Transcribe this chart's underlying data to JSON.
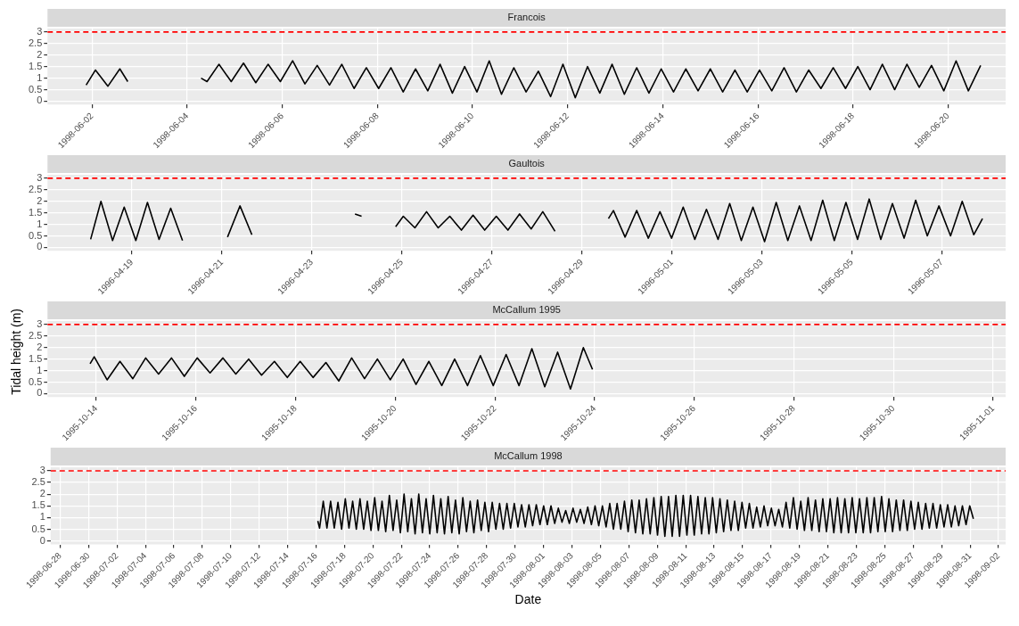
{
  "chart_data": [
    {
      "type": "line",
      "title": "Francois",
      "xlim": [
        "1998-06-01T01:30",
        "1998-06-21T05:00"
      ],
      "xticks": [
        "1998-06-02",
        "1998-06-04",
        "1998-06-06",
        "1998-06-08",
        "1998-06-10",
        "1998-06-12",
        "1998-06-14",
        "1998-06-16",
        "1998-06-18",
        "1998-06-20"
      ],
      "ylim": [
        -0.15,
        3.15
      ],
      "yticks": [
        0,
        0.5,
        1,
        1.5,
        2,
        2.5,
        3
      ],
      "grid": true,
      "ref_lines": [
        {
          "axis": "y",
          "value": 3,
          "color": "#ff0000",
          "line_style": "dashed"
        }
      ],
      "series": [
        {
          "color": "#000000",
          "x": [
            "1998-06-01T21:00",
            "1998-06-02T01:40",
            "1998-06-02T08:00",
            "1998-06-02T14:00",
            "1998-06-02T18:00",
            "1998-06-03T12:00",
            "1998-06-04T07:00",
            "1998-06-04T10:00",
            "1998-06-04T16:00",
            "1998-06-04T22:12",
            "1998-06-05T04:24",
            "1998-06-05T10:36",
            "1998-06-05T16:48",
            "1998-06-05T23:00",
            "1998-06-06T05:12",
            "1998-06-06T11:24",
            "1998-06-06T17:36",
            "1998-06-06T23:48",
            "1998-06-07T06:00",
            "1998-06-07T12:12",
            "1998-06-07T18:24",
            "1998-06-08T00:36",
            "1998-06-08T06:48",
            "1998-06-08T13:00",
            "1998-06-08T19:12",
            "1998-06-09T01:24",
            "1998-06-09T07:36",
            "1998-06-09T13:48",
            "1998-06-09T20:00",
            "1998-06-10T02:12",
            "1998-06-10T08:24",
            "1998-06-10T14:36",
            "1998-06-10T20:48",
            "1998-06-11T03:00",
            "1998-06-11T09:12",
            "1998-06-11T15:24",
            "1998-06-11T21:36",
            "1998-06-12T03:48",
            "1998-06-12T10:00",
            "1998-06-12T16:12",
            "1998-06-12T22:24",
            "1998-06-13T04:36",
            "1998-06-13T10:48",
            "1998-06-13T17:00",
            "1998-06-13T23:12",
            "1998-06-14T05:24",
            "1998-06-14T11:36",
            "1998-06-14T17:48",
            "1998-06-15T00:00",
            "1998-06-15T06:12",
            "1998-06-15T12:24",
            "1998-06-15T18:36",
            "1998-06-16T00:48",
            "1998-06-16T07:00",
            "1998-06-16T13:12",
            "1998-06-16T19:24",
            "1998-06-17T01:36",
            "1998-06-17T07:48",
            "1998-06-17T14:00",
            "1998-06-17T20:12",
            "1998-06-18T02:24",
            "1998-06-18T08:36",
            "1998-06-18T14:48",
            "1998-06-18T21:00",
            "1998-06-19T03:12",
            "1998-06-19T09:24",
            "1998-06-19T15:36",
            "1998-06-19T21:48",
            "1998-06-20T04:00",
            "1998-06-20T10:12",
            "1998-06-20T16:24"
          ],
          "values": [
            0.7,
            1.35,
            0.65,
            1.4,
            0.85,
            null,
            1.0,
            0.85,
            1.6,
            0.85,
            1.65,
            0.8,
            1.6,
            0.85,
            1.75,
            0.75,
            1.55,
            0.7,
            1.6,
            0.55,
            1.45,
            0.55,
            1.45,
            0.4,
            1.4,
            0.45,
            1.6,
            0.35,
            1.5,
            0.4,
            1.75,
            0.3,
            1.45,
            0.4,
            1.3,
            0.2,
            1.6,
            0.15,
            1.5,
            0.35,
            1.6,
            0.3,
            1.45,
            0.35,
            1.4,
            0.4,
            1.4,
            0.45,
            1.4,
            0.4,
            1.35,
            0.4,
            1.35,
            0.45,
            1.45,
            0.4,
            1.35,
            0.55,
            1.45,
            0.55,
            1.5,
            0.5,
            1.6,
            0.5,
            1.6,
            0.6,
            1.55,
            0.45,
            1.75,
            0.45,
            1.55
          ]
        }
      ]
    },
    {
      "type": "line",
      "title": "Gaultois",
      "xlim": [
        "1996-04-17T03:00",
        "1996-05-08T10:00"
      ],
      "xticks": [
        "1996-04-19",
        "1996-04-21",
        "1996-04-23",
        "1996-04-25",
        "1996-04-27",
        "1996-04-29",
        "1996-05-01",
        "1996-05-03",
        "1996-05-05",
        "1996-05-07"
      ],
      "ylim": [
        -0.15,
        3.15
      ],
      "yticks": [
        0,
        0.5,
        1,
        1.5,
        2,
        2.5,
        3
      ],
      "grid": true,
      "ref_lines": [
        {
          "axis": "y",
          "value": 3,
          "color": "#ff0000",
          "line_style": "dashed"
        }
      ],
      "series": [
        {
          "color": "#000000",
          "x": [
            "1996-04-18T02:00",
            "1996-04-18T07:30",
            "1996-04-18T13:42",
            "1996-04-18T19:54",
            "1996-04-19T02:06",
            "1996-04-19T08:18",
            "1996-04-19T14:30",
            "1996-04-19T20:42",
            "1996-04-20T03:00",
            "1996-04-20T15:00",
            "1996-04-21T03:00",
            "1996-04-21T09:40",
            "1996-04-21T16:00",
            "1996-04-22T20:00",
            "1996-04-23T23:00",
            "1996-04-24T02:30",
            "1996-04-24T12:00",
            "1996-04-24T20:40",
            "1996-04-25T00:45",
            "1996-04-25T06:57",
            "1996-04-25T13:09",
            "1996-04-25T19:21",
            "1996-04-26T01:33",
            "1996-04-26T07:45",
            "1996-04-26T13:57",
            "1996-04-26T20:09",
            "1996-04-27T02:21",
            "1996-04-27T08:33",
            "1996-04-27T14:45",
            "1996-04-27T20:57",
            "1996-04-28T03:09",
            "1996-04-28T09:40",
            "1996-04-29T00:00",
            "1996-04-29T14:10",
            "1996-04-29T16:50",
            "1996-04-29T23:02",
            "1996-04-30T05:14",
            "1996-04-30T11:26",
            "1996-04-30T17:38",
            "1996-04-30T23:50",
            "1996-05-01T06:02",
            "1996-05-01T12:14",
            "1996-05-01T18:26",
            "1996-05-02T00:38",
            "1996-05-02T06:50",
            "1996-05-02T13:02",
            "1996-05-02T19:14",
            "1996-05-03T01:26",
            "1996-05-03T07:38",
            "1996-05-03T13:50",
            "1996-05-03T20:02",
            "1996-05-04T02:14",
            "1996-05-04T08:26",
            "1996-05-04T14:38",
            "1996-05-04T20:50",
            "1996-05-05T03:02",
            "1996-05-05T09:14",
            "1996-05-05T15:26",
            "1996-05-05T21:38",
            "1996-05-06T03:50",
            "1996-05-06T10:02",
            "1996-05-06T16:14",
            "1996-05-06T22:26",
            "1996-05-07T04:38",
            "1996-05-07T10:50",
            "1996-05-07T17:02",
            "1996-05-07T21:40"
          ],
          "values": [
            0.35,
            2.0,
            0.3,
            1.75,
            0.3,
            1.95,
            0.35,
            1.7,
            0.3,
            null,
            0.45,
            1.8,
            0.55,
            null,
            1.45,
            1.35,
            null,
            0.9,
            1.35,
            0.85,
            1.55,
            0.85,
            1.35,
            0.75,
            1.4,
            0.75,
            1.35,
            0.75,
            1.45,
            0.8,
            1.55,
            0.7,
            null,
            1.25,
            1.6,
            0.45,
            1.6,
            0.4,
            1.55,
            0.4,
            1.75,
            0.35,
            1.65,
            0.35,
            1.9,
            0.3,
            1.75,
            0.25,
            1.95,
            0.3,
            1.8,
            0.3,
            2.05,
            0.3,
            1.95,
            0.35,
            2.1,
            0.35,
            1.9,
            0.4,
            2.05,
            0.5,
            1.8,
            0.5,
            2.0,
            0.55,
            1.25
          ]
        }
      ]
    },
    {
      "type": "line",
      "title": "McCallum 1995",
      "ylabel": "Tidal height (m)",
      "xlim": [
        "1995-10-13T00:30",
        "1995-11-01T06:00"
      ],
      "xticks": [
        "1995-10-14",
        "1995-10-16",
        "1995-10-18",
        "1995-10-20",
        "1995-10-22",
        "1995-10-24",
        "1995-10-26",
        "1995-10-28",
        "1995-10-30",
        "1995-11-01"
      ],
      "ylim": [
        -0.15,
        3.15
      ],
      "yticks": [
        0,
        0.5,
        1,
        1.5,
        2,
        2.5,
        3
      ],
      "grid": true,
      "ref_lines": [
        {
          "axis": "y",
          "value": 3,
          "color": "#ff0000",
          "line_style": "dashed"
        }
      ],
      "series": [
        {
          "color": "#000000",
          "x": [
            "1995-10-13T21:00",
            "1995-10-13T23:00",
            "1995-10-14T05:12",
            "1995-10-14T11:24",
            "1995-10-14T17:36",
            "1995-10-14T23:48",
            "1995-10-15T06:00",
            "1995-10-15T12:12",
            "1995-10-15T18:24",
            "1995-10-16T00:36",
            "1995-10-16T06:48",
            "1995-10-16T13:00",
            "1995-10-16T19:12",
            "1995-10-17T01:24",
            "1995-10-17T07:36",
            "1995-10-17T13:48",
            "1995-10-17T20:00",
            "1995-10-18T02:12",
            "1995-10-18T08:24",
            "1995-10-18T14:36",
            "1995-10-18T20:48",
            "1995-10-19T03:00",
            "1995-10-19T09:12",
            "1995-10-19T15:24",
            "1995-10-19T21:36",
            "1995-10-20T03:48",
            "1995-10-20T10:00",
            "1995-10-20T16:12",
            "1995-10-20T22:24",
            "1995-10-21T04:36",
            "1995-10-21T10:48",
            "1995-10-21T17:00",
            "1995-10-21T23:12",
            "1995-10-22T05:24",
            "1995-10-22T11:36",
            "1995-10-22T17:48",
            "1995-10-23T00:00",
            "1995-10-23T06:12",
            "1995-10-23T12:24",
            "1995-10-23T18:36",
            "1995-10-23T23:00"
          ],
          "values": [
            1.3,
            1.6,
            0.6,
            1.4,
            0.65,
            1.55,
            0.85,
            1.55,
            0.75,
            1.55,
            0.9,
            1.55,
            0.85,
            1.5,
            0.8,
            1.4,
            0.7,
            1.4,
            0.7,
            1.35,
            0.55,
            1.55,
            0.65,
            1.5,
            0.6,
            1.5,
            0.4,
            1.4,
            0.35,
            1.5,
            0.35,
            1.65,
            0.35,
            1.7,
            0.35,
            1.95,
            0.3,
            1.8,
            0.2,
            2.0,
            1.05
          ]
        }
      ]
    },
    {
      "type": "line",
      "title": "McCallum 1998",
      "xlabel": "Date",
      "xlim": [
        "1998-06-27T08:00",
        "1998-09-02T12:00"
      ],
      "xticks": [
        "1998-06-28",
        "1998-06-30",
        "1998-07-02",
        "1998-07-04",
        "1998-07-06",
        "1998-07-08",
        "1998-07-10",
        "1998-07-12",
        "1998-07-14",
        "1998-07-16",
        "1998-07-18",
        "1998-07-20",
        "1998-07-22",
        "1998-07-24",
        "1998-07-26",
        "1998-07-28",
        "1998-07-30",
        "1998-08-01",
        "1998-08-03",
        "1998-08-05",
        "1998-08-07",
        "1998-08-09",
        "1998-08-11",
        "1998-08-13",
        "1998-08-15",
        "1998-08-17",
        "1998-08-19",
        "1998-08-21",
        "1998-08-23",
        "1998-08-25",
        "1998-08-27",
        "1998-08-29",
        "1998-08-31",
        "1998-09-02"
      ],
      "ylim": [
        -0.15,
        3.15
      ],
      "yticks": [
        0,
        0.5,
        1,
        1.5,
        2,
        2.5,
        3
      ],
      "grid": true,
      "ref_lines": [
        {
          "axis": "y",
          "value": 3,
          "color": "#ff0000",
          "line_style": "dashed"
        }
      ],
      "series": [
        {
          "color": "#000000",
          "x": [
            "1998-07-16T03:00",
            "1998-07-16T06:00",
            "1998-07-16T12:12",
            "1998-07-16T18:24",
            "1998-07-17T00:36",
            "1998-07-17T06:48",
            "1998-07-17T13:00",
            "1998-07-17T19:12",
            "1998-07-18T01:24",
            "1998-07-18T07:36",
            "1998-07-18T13:48",
            "1998-07-18T20:00",
            "1998-07-19T02:12",
            "1998-07-19T08:24",
            "1998-07-19T14:36",
            "1998-07-19T20:48",
            "1998-07-20T03:00",
            "1998-07-20T09:12",
            "1998-07-20T15:24",
            "1998-07-20T21:36",
            "1998-07-21T03:48",
            "1998-07-21T10:00",
            "1998-07-21T16:12",
            "1998-07-21T22:24",
            "1998-07-22T04:36",
            "1998-07-22T10:48",
            "1998-07-22T17:00",
            "1998-07-22T23:12",
            "1998-07-23T05:24",
            "1998-07-23T11:36",
            "1998-07-23T17:48",
            "1998-07-24T00:00",
            "1998-07-24T06:12",
            "1998-07-24T12:24",
            "1998-07-24T18:36",
            "1998-07-25T00:48",
            "1998-07-25T07:00",
            "1998-07-25T13:12",
            "1998-07-25T19:24",
            "1998-07-26T01:36",
            "1998-07-26T07:48",
            "1998-07-26T14:00",
            "1998-07-26T20:12",
            "1998-07-27T02:24",
            "1998-07-27T08:36",
            "1998-07-27T14:48",
            "1998-07-27T21:00",
            "1998-07-28T03:12",
            "1998-07-28T09:24",
            "1998-07-28T15:36",
            "1998-07-28T21:48",
            "1998-07-29T04:00",
            "1998-07-29T10:12",
            "1998-07-29T16:24",
            "1998-07-29T22:36",
            "1998-07-30T04:48",
            "1998-07-30T11:00",
            "1998-07-30T17:12",
            "1998-07-30T23:24",
            "1998-07-31T05:36",
            "1998-07-31T11:48",
            "1998-07-31T18:00",
            "1998-08-01T00:12",
            "1998-08-01T06:24",
            "1998-08-01T12:36",
            "1998-08-01T18:48",
            "1998-08-02T01:00",
            "1998-08-02T07:12",
            "1998-08-02T13:24",
            "1998-08-02T19:36",
            "1998-08-03T01:48",
            "1998-08-03T08:00",
            "1998-08-03T14:12",
            "1998-08-03T20:24",
            "1998-08-04T02:36",
            "1998-08-04T08:48",
            "1998-08-04T15:00",
            "1998-08-04T21:12",
            "1998-08-05T03:24",
            "1998-08-05T09:36",
            "1998-08-05T15:48",
            "1998-08-05T22:00",
            "1998-08-06T04:12",
            "1998-08-06T10:24",
            "1998-08-06T16:36",
            "1998-08-06T22:48",
            "1998-08-07T05:00",
            "1998-08-07T11:12",
            "1998-08-07T17:24",
            "1998-08-07T23:36",
            "1998-08-08T05:48",
            "1998-08-08T12:00",
            "1998-08-08T18:12",
            "1998-08-09T00:24",
            "1998-08-09T06:36",
            "1998-08-09T12:48",
            "1998-08-09T19:00",
            "1998-08-10T01:12",
            "1998-08-10T07:24",
            "1998-08-10T13:36",
            "1998-08-10T19:48",
            "1998-08-11T02:00",
            "1998-08-11T08:12",
            "1998-08-11T14:24",
            "1998-08-11T20:36",
            "1998-08-12T02:48",
            "1998-08-12T09:00",
            "1998-08-12T15:12",
            "1998-08-12T21:24",
            "1998-08-13T03:36",
            "1998-08-13T09:48",
            "1998-08-13T16:00",
            "1998-08-13T22:12",
            "1998-08-14T04:24",
            "1998-08-14T10:36",
            "1998-08-14T16:48",
            "1998-08-14T23:00",
            "1998-08-15T05:12",
            "1998-08-15T11:24",
            "1998-08-15T17:36",
            "1998-08-15T23:48",
            "1998-08-16T06:00",
            "1998-08-16T12:12",
            "1998-08-16T18:24",
            "1998-08-17T00:36",
            "1998-08-17T06:48",
            "1998-08-17T13:00",
            "1998-08-17T19:12",
            "1998-08-18T01:24",
            "1998-08-18T07:36",
            "1998-08-18T13:48",
            "1998-08-18T20:00",
            "1998-08-19T02:12",
            "1998-08-19T08:24",
            "1998-08-19T14:36",
            "1998-08-19T20:48",
            "1998-08-20T03:00",
            "1998-08-20T09:12",
            "1998-08-20T15:24",
            "1998-08-20T21:36",
            "1998-08-21T03:48",
            "1998-08-21T10:00",
            "1998-08-21T16:12",
            "1998-08-21T22:24",
            "1998-08-22T04:36",
            "1998-08-22T10:48",
            "1998-08-22T17:00",
            "1998-08-22T23:12",
            "1998-08-23T05:24",
            "1998-08-23T11:36",
            "1998-08-23T17:48",
            "1998-08-24T00:00",
            "1998-08-24T06:12",
            "1998-08-24T12:24",
            "1998-08-24T18:36",
            "1998-08-25T00:48",
            "1998-08-25T07:00",
            "1998-08-25T13:12",
            "1998-08-25T19:24",
            "1998-08-26T01:36",
            "1998-08-26T07:48",
            "1998-08-26T14:00",
            "1998-08-26T20:12",
            "1998-08-27T02:24",
            "1998-08-27T08:36",
            "1998-08-27T14:48",
            "1998-08-27T21:00",
            "1998-08-28T03:12",
            "1998-08-28T09:24",
            "1998-08-28T15:36",
            "1998-08-28T21:48",
            "1998-08-29T04:00",
            "1998-08-29T10:12",
            "1998-08-29T16:24",
            "1998-08-29T22:36",
            "1998-08-30T04:48",
            "1998-08-30T11:00",
            "1998-08-30T17:12",
            "1998-08-30T23:24",
            "1998-08-31T05:36"
          ],
          "values": [
            0.85,
            0.55,
            1.7,
            0.55,
            1.7,
            0.55,
            1.65,
            0.5,
            1.8,
            0.55,
            1.7,
            0.5,
            1.8,
            0.5,
            1.7,
            0.45,
            1.85,
            0.45,
            1.7,
            0.4,
            1.95,
            0.45,
            1.75,
            0.35,
            2.0,
            0.4,
            1.8,
            0.3,
            2.0,
            0.35,
            1.8,
            0.3,
            1.95,
            0.35,
            1.8,
            0.3,
            1.9,
            0.35,
            1.75,
            0.3,
            1.85,
            0.4,
            1.7,
            0.35,
            1.75,
            0.45,
            1.65,
            0.4,
            1.65,
            0.5,
            1.6,
            0.5,
            1.6,
            0.55,
            1.6,
            0.6,
            1.55,
            0.6,
            1.55,
            0.65,
            1.55,
            0.7,
            1.5,
            0.7,
            1.5,
            0.75,
            1.4,
            0.8,
            1.3,
            0.75,
            1.4,
            0.8,
            1.35,
            0.75,
            1.45,
            0.7,
            1.5,
            0.65,
            1.5,
            0.6,
            1.6,
            0.5,
            1.6,
            0.5,
            1.7,
            0.4,
            1.75,
            0.35,
            1.75,
            0.3,
            1.8,
            0.3,
            1.85,
            0.25,
            1.9,
            0.2,
            1.9,
            0.2,
            1.95,
            0.2,
            1.95,
            0.25,
            1.95,
            0.25,
            1.9,
            0.3,
            1.85,
            0.3,
            1.85,
            0.35,
            1.8,
            0.4,
            1.75,
            0.45,
            1.7,
            0.45,
            1.65,
            0.55,
            1.6,
            0.55,
            1.45,
            0.6,
            1.5,
            0.65,
            1.4,
            0.65,
            1.35,
            0.6,
            1.65,
            0.55,
            1.85,
            0.5,
            1.7,
            0.45,
            1.85,
            0.45,
            1.75,
            0.4,
            1.8,
            0.4,
            1.8,
            0.35,
            1.85,
            0.35,
            1.8,
            0.35,
            1.85,
            0.35,
            1.8,
            0.35,
            1.85,
            0.35,
            1.85,
            0.4,
            1.9,
            0.4,
            1.8,
            0.4,
            1.75,
            0.45,
            1.75,
            0.45,
            1.7,
            0.5,
            1.65,
            0.5,
            1.6,
            0.55,
            1.6,
            0.55,
            1.55,
            0.6,
            1.55,
            0.6,
            1.5,
            0.65,
            1.5,
            0.7,
            1.5,
            0.95
          ]
        }
      ]
    }
  ]
}
